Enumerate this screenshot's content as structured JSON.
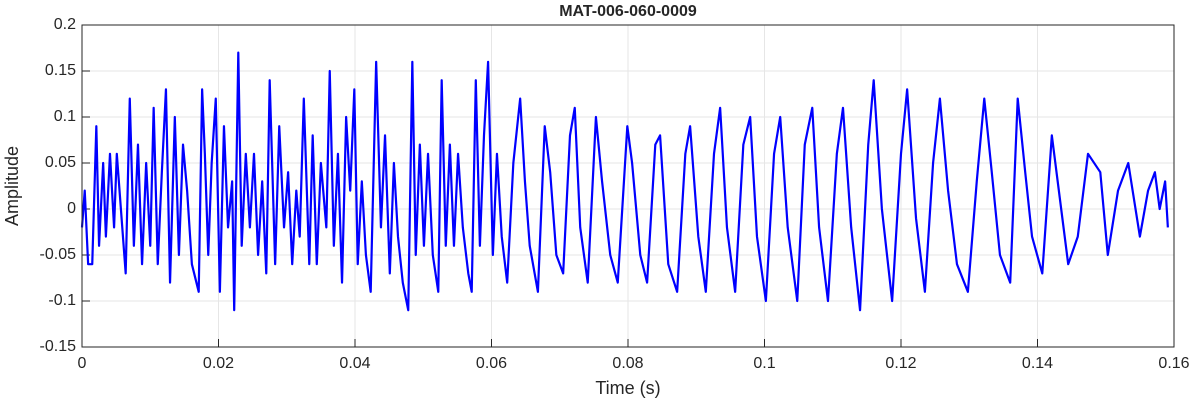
{
  "chart_data": {
    "type": "line",
    "title": "MAT-006-060-0009",
    "x_label": "Time (s)",
    "y_label": "Amplitude",
    "color": "#0000ff",
    "grid": true,
    "xlim": [
      0,
      0.16
    ],
    "xticks": [
      0,
      0.02,
      0.04,
      0.06,
      0.08,
      0.1,
      0.12,
      0.14,
      0.16
    ],
    "ylim": [
      -0.15,
      0.2
    ],
    "yticks": [
      -0.15,
      -0.1,
      -0.05,
      0,
      0.05,
      0.1,
      0.15,
      0.2
    ],
    "x": [
      0,
      0.0004,
      0.0009,
      0.0015,
      0.0021,
      0.0025,
      0.0031,
      0.0035,
      0.0041,
      0.0047,
      0.0051,
      0.0057,
      0.0064,
      0.007,
      0.0076,
      0.0082,
      0.0088,
      0.0094,
      0.01,
      0.0105,
      0.0111,
      0.0117,
      0.0123,
      0.0129,
      0.0136,
      0.0142,
      0.0148,
      0.0154,
      0.0161,
      0.0171,
      0.0176,
      0.018,
      0.0185,
      0.019,
      0.0196,
      0.0202,
      0.0208,
      0.0214,
      0.022,
      0.0223,
      0.0229,
      0.0234,
      0.024,
      0.0246,
      0.0252,
      0.0258,
      0.0264,
      0.027,
      0.0275,
      0.0283,
      0.0289,
      0.0296,
      0.0302,
      0.0308,
      0.0314,
      0.0319,
      0.0325,
      0.0333,
      0.0338,
      0.0344,
      0.035,
      0.0358,
      0.0363,
      0.0369,
      0.0375,
      0.0381,
      0.0387,
      0.0393,
      0.0399,
      0.0404,
      0.041,
      0.0416,
      0.0423,
      0.0431,
      0.0438,
      0.0444,
      0.0451,
      0.0457,
      0.0463,
      0.047,
      0.0478,
      0.0484,
      0.0489,
      0.0495,
      0.0501,
      0.0507,
      0.0514,
      0.0522,
      0.0527,
      0.0533,
      0.0539,
      0.0545,
      0.0551,
      0.0558,
      0.0566,
      0.0571,
      0.0577,
      0.0583,
      0.0589,
      0.0595,
      0.0602,
      0.0608,
      0.0615,
      0.0623,
      0.0632,
      0.0642,
      0.0649,
      0.0656,
      0.0668,
      0.0678,
      0.0686,
      0.0695,
      0.0705,
      0.0715,
      0.0722,
      0.073,
      0.0741,
      0.0753,
      0.0762,
      0.0774,
      0.0785,
      0.0799,
      0.0806,
      0.0818,
      0.0828,
      0.084,
      0.0847,
      0.0859,
      0.0872,
      0.0884,
      0.0891,
      0.0903,
      0.0914,
      0.0926,
      0.0935,
      0.0945,
      0.0957,
      0.0969,
      0.0979,
      0.0989,
      0.1002,
      0.1014,
      0.1023,
      0.1034,
      0.1048,
      0.1059,
      0.107,
      0.108,
      0.1093,
      0.1106,
      0.1115,
      0.1127,
      0.114,
      0.1152,
      0.116,
      0.1172,
      0.1187,
      0.12,
      0.1209,
      0.1222,
      0.1235,
      0.1247,
      0.1257,
      0.1269,
      0.1282,
      0.1298,
      0.1311,
      0.1322,
      0.1333,
      0.1345,
      0.136,
      0.1371,
      0.1382,
      0.1392,
      0.1407,
      0.1421,
      0.1433,
      0.1445,
      0.1459,
      0.1474,
      0.1492,
      0.1503,
      0.1518,
      0.1533,
      0.155,
      0.1562,
      0.1572,
      0.1579,
      0.1587,
      0.1591
    ],
    "values": [
      -0.02,
      0.02,
      -0.06,
      -0.06,
      0.09,
      -0.04,
      0.05,
      -0.03,
      0.06,
      -0.02,
      0.06,
      0.0,
      -0.07,
      0.12,
      -0.04,
      0.07,
      -0.06,
      0.05,
      -0.04,
      0.11,
      -0.06,
      0.04,
      0.13,
      -0.08,
      0.1,
      -0.05,
      0.07,
      0.02,
      -0.06,
      -0.09,
      0.13,
      0.06,
      -0.05,
      0.05,
      0.12,
      -0.09,
      0.09,
      -0.02,
      0.03,
      -0.11,
      0.17,
      -0.04,
      0.06,
      -0.02,
      0.06,
      -0.05,
      0.03,
      -0.07,
      0.14,
      -0.06,
      0.09,
      -0.02,
      0.04,
      -0.06,
      0.02,
      -0.03,
      0.12,
      -0.06,
      0.08,
      -0.06,
      0.05,
      -0.02,
      0.15,
      -0.04,
      0.06,
      -0.08,
      0.1,
      0.02,
      0.13,
      -0.06,
      0.03,
      -0.05,
      -0.09,
      0.16,
      -0.02,
      0.08,
      -0.07,
      0.05,
      -0.03,
      -0.08,
      -0.11,
      0.16,
      -0.05,
      0.07,
      -0.04,
      0.06,
      -0.05,
      -0.09,
      0.14,
      -0.04,
      0.07,
      -0.04,
      0.06,
      -0.02,
      -0.07,
      -0.09,
      0.14,
      -0.04,
      0.08,
      0.16,
      -0.05,
      0.06,
      -0.03,
      -0.08,
      0.05,
      0.12,
      0.03,
      -0.04,
      -0.09,
      0.09,
      0.04,
      -0.05,
      -0.07,
      0.08,
      0.11,
      -0.02,
      -0.08,
      0.1,
      0.03,
      -0.05,
      -0.08,
      0.09,
      0.05,
      -0.05,
      -0.08,
      0.07,
      0.08,
      -0.06,
      -0.09,
      0.06,
      0.09,
      -0.03,
      -0.09,
      0.06,
      0.11,
      -0.02,
      -0.09,
      0.07,
      0.1,
      -0.03,
      -0.1,
      0.06,
      0.1,
      -0.02,
      -0.1,
      0.07,
      0.11,
      -0.02,
      -0.1,
      0.06,
      0.11,
      -0.02,
      -0.11,
      0.07,
      0.14,
      0.0,
      -0.1,
      0.06,
      0.13,
      -0.01,
      -0.09,
      0.05,
      0.12,
      0.02,
      -0.06,
      -0.09,
      0.03,
      0.12,
      0.04,
      -0.05,
      -0.08,
      0.12,
      0.04,
      -0.03,
      -0.07,
      0.08,
      0.01,
      -0.06,
      -0.03,
      0.06,
      0.04,
      -0.05,
      0.02,
      0.05,
      -0.03,
      0.02,
      0.04,
      0.0,
      0.03,
      -0.02
    ]
  }
}
